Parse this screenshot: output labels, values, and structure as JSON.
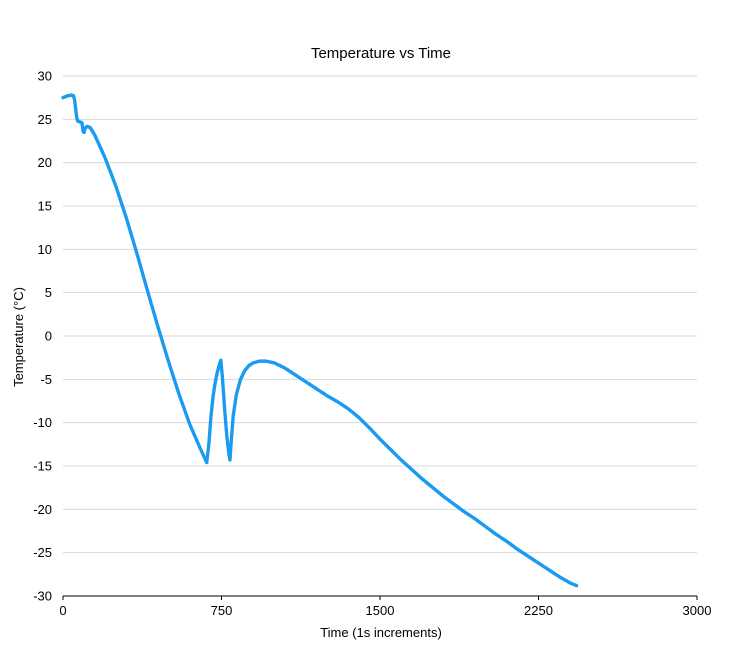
{
  "chart_data": {
    "type": "scatter",
    "title": "Temperature vs Time",
    "xlabel": "Time (1s increments)",
    "ylabel": "Temperature (°C)",
    "xlim": [
      0,
      3000
    ],
    "ylim": [
      -30,
      30
    ],
    "x_ticks": [
      "0",
      "750",
      "1500",
      "2250",
      "3000"
    ],
    "x_tick_values": [
      0,
      750,
      1500,
      2250,
      3000
    ],
    "y_ticks": [
      "30",
      "25",
      "20",
      "15",
      "10",
      "5",
      "0",
      "-5",
      "-10",
      "-15",
      "-20",
      "-25",
      "-30"
    ],
    "y_tick_values": [
      30,
      25,
      20,
      15,
      10,
      5,
      0,
      -5,
      -10,
      -15,
      -20,
      -25,
      -30
    ],
    "grid": true,
    "legend": "none",
    "color": "#1a9bf0",
    "series": [
      {
        "points": [
          [
            0,
            27.5
          ],
          [
            10,
            27.6
          ],
          [
            20,
            27.7
          ],
          [
            30,
            27.75
          ],
          [
            40,
            27.8
          ],
          [
            50,
            27.7
          ],
          [
            55,
            27.2
          ],
          [
            60,
            26.2
          ],
          [
            65,
            25.2
          ],
          [
            70,
            24.8
          ],
          [
            80,
            24.7
          ],
          [
            90,
            24.6
          ],
          [
            95,
            23.6
          ],
          [
            100,
            23.5
          ],
          [
            105,
            24.0
          ],
          [
            115,
            24.2
          ],
          [
            130,
            24.0
          ],
          [
            150,
            23.2
          ],
          [
            200,
            20.5
          ],
          [
            250,
            17.3
          ],
          [
            300,
            13.6
          ],
          [
            350,
            9.5
          ],
          [
            400,
            5.2
          ],
          [
            450,
            1.0
          ],
          [
            500,
            -3.0
          ],
          [
            550,
            -6.8
          ],
          [
            600,
            -10.2
          ],
          [
            650,
            -13.0
          ],
          [
            680,
            -14.6
          ],
          [
            690,
            -12.5
          ],
          [
            700,
            -9.3
          ],
          [
            710,
            -7.0
          ],
          [
            720,
            -5.4
          ],
          [
            730,
            -4.2
          ],
          [
            740,
            -3.3
          ],
          [
            747,
            -2.8
          ],
          [
            755,
            -5.0
          ],
          [
            765,
            -8.5
          ],
          [
            775,
            -11.5
          ],
          [
            785,
            -13.6
          ],
          [
            790,
            -14.3
          ],
          [
            795,
            -12.5
          ],
          [
            805,
            -9.3
          ],
          [
            820,
            -6.8
          ],
          [
            840,
            -5.0
          ],
          [
            860,
            -4.0
          ],
          [
            880,
            -3.4
          ],
          [
            900,
            -3.1
          ],
          [
            930,
            -2.9
          ],
          [
            960,
            -2.9
          ],
          [
            1000,
            -3.1
          ],
          [
            1050,
            -3.7
          ],
          [
            1100,
            -4.5
          ],
          [
            1150,
            -5.3
          ],
          [
            1200,
            -6.1
          ],
          [
            1250,
            -6.9
          ],
          [
            1300,
            -7.6
          ],
          [
            1350,
            -8.4
          ],
          [
            1400,
            -9.4
          ],
          [
            1450,
            -10.6
          ],
          [
            1500,
            -11.9
          ],
          [
            1550,
            -13.1
          ],
          [
            1600,
            -14.3
          ],
          [
            1650,
            -15.4
          ],
          [
            1700,
            -16.5
          ],
          [
            1750,
            -17.5
          ],
          [
            1800,
            -18.5
          ],
          [
            1850,
            -19.4
          ],
          [
            1900,
            -20.3
          ],
          [
            1950,
            -21.1
          ],
          [
            2000,
            -22.0
          ],
          [
            2050,
            -22.9
          ],
          [
            2100,
            -23.7
          ],
          [
            2150,
            -24.6
          ],
          [
            2200,
            -25.4
          ],
          [
            2250,
            -26.2
          ],
          [
            2300,
            -27.0
          ],
          [
            2350,
            -27.8
          ],
          [
            2400,
            -28.5
          ],
          [
            2430,
            -28.8
          ]
        ]
      }
    ]
  }
}
